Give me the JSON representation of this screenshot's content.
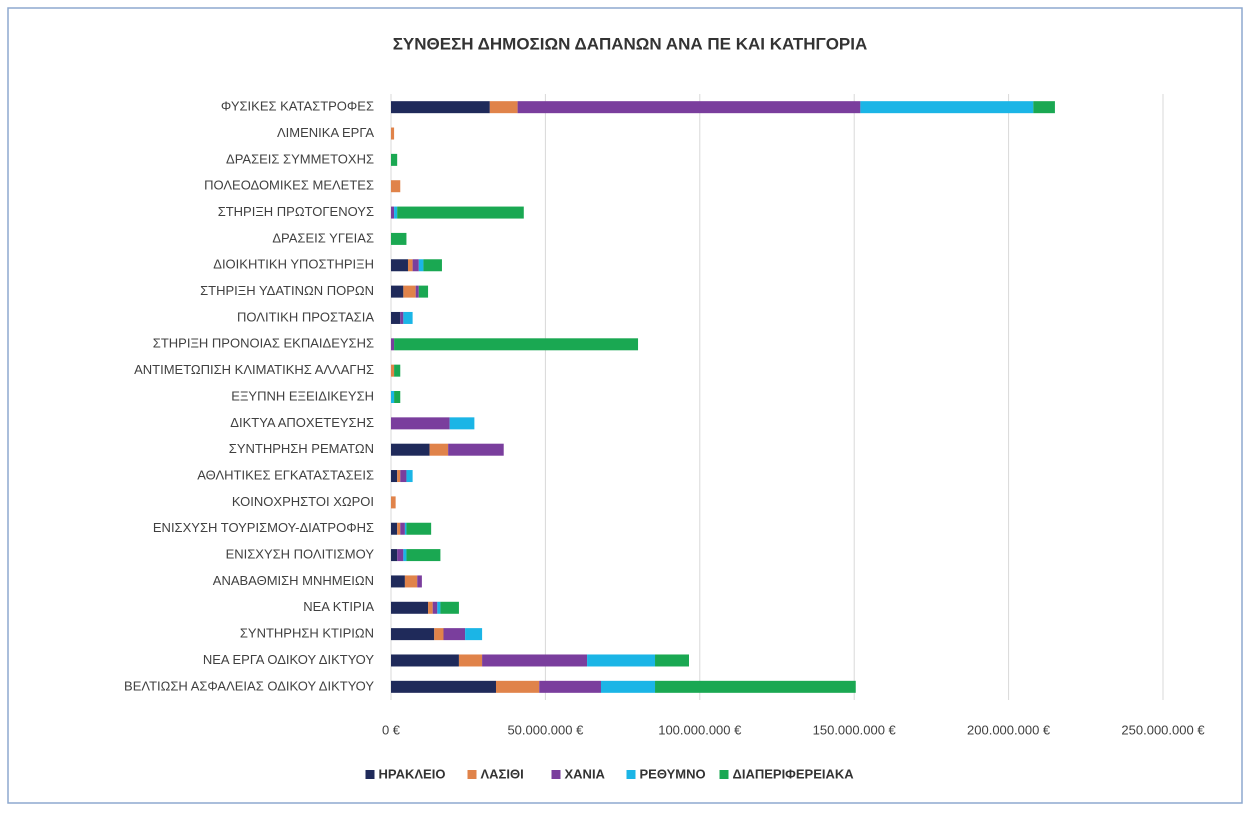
{
  "chart_data": {
    "type": "stacked-barh",
    "title": "ΣΥΝΘΕΣΗ ΔΗΜΟΣΙΩΝ ΔΑΠΑΝΩΝ ΑΝΑ ΠΕ ΚΑΙ ΚΑΤΗΓΟΡΙΑ",
    "categories": [
      "ΦΥΣΙΚΕΣ ΚΑΤΑΣΤΡΟΦΕΣ",
      "ΛΙΜΕΝΙΚΑ ΕΡΓΑ",
      "ΔΡΑΣΕΙΣ ΣΥΜΜΕΤΟΧΗΣ",
      "ΠΟΛΕΟΔΟΜΙΚΕΣ ΜΕΛΕΤΕΣ",
      "ΣΤΗΡΙΞΗ ΠΡΩΤΟΓΕΝΟΥΣ",
      "ΔΡΑΣΕΙΣ ΥΓΕΙΑΣ",
      "ΔΙΟΙΚΗΤΙΚΗ ΥΠΟΣΤΗΡΙΞΗ",
      "ΣΤΗΡΙΞΗ ΥΔΑΤΙΝΩΝ ΠΟΡΩΝ",
      "ΠΟΛΙΤΙΚΗ ΠΡΟΣΤΑΣΙΑ",
      "ΣΤΗΡΙΞΗ ΠΡΟΝΟΙΑΣ ΕΚΠΑΙΔΕΥΣΗΣ",
      "ΑΝΤΙΜΕΤΩΠΙΣΗ ΚΛΙΜΑΤΙΚΗΣ ΑΛΛΑΓΗΣ",
      "ΕΞΥΠΝΗ ΕΞΕΙΔΙΚΕΥΣΗ",
      "ΔΙΚΤΥΑ ΑΠΟΧΕΤΕΥΣΗΣ",
      "ΣΥΝΤΗΡΗΣΗ ΡΕΜΑΤΩΝ",
      "ΑΘΛΗΤΙΚΕΣ ΕΓΚΑΤΑΣΤΑΣΕΙΣ",
      "ΚΟΙΝΟΧΡΗΣΤΟΙ ΧΩΡΟΙ",
      "ΕΝΙΣΧΥΣΗ ΤΟΥΡΙΣΜΟΥ-ΔΙΑΤΡΟΦΗΣ",
      "ΕΝΙΣΧΥΣΗ ΠΟΛΙΤΙΣΜΟΥ",
      "ΑΝΑΒΑΘΜΙΣΗ ΜΝΗΜΕΙΩΝ",
      "ΝΕΑ ΚΤΙΡΙΑ",
      "ΣΥΝΤΗΡΗΣΗ ΚΤΙΡΙΩΝ",
      "ΝΕΑ ΕΡΓΑ ΟΔΙΚΟΥ ΔΙΚΤΥΟΥ",
      "ΒΕΛΤΙΩΣΗ ΑΣΦΑΛΕΙΑΣ ΟΔΙΚΟΥ ΔΙΚΤΥΟΥ"
    ],
    "series": [
      {
        "name": "ΗΡΑΚΛΕΙΟ",
        "color": "#1f2a5a",
        "values": [
          32000000,
          0,
          0,
          0,
          0,
          0,
          5500000,
          4000000,
          3000000,
          0,
          0,
          0,
          0,
          12500000,
          2000000,
          0,
          2000000,
          2000000,
          4500000,
          12000000,
          14000000,
          22000000,
          34000000
        ]
      },
      {
        "name": "ΛΑΣΙΘΙ",
        "color": "#e0834a",
        "values": [
          9000000,
          1000000,
          0,
          3000000,
          0,
          0,
          1500000,
          4000000,
          0,
          0,
          1000000,
          0,
          0,
          6000000,
          1000000,
          1500000,
          1000000,
          0,
          4000000,
          1500000,
          3000000,
          7500000,
          14000000
        ]
      },
      {
        "name": "ΧΑΝΙΑ",
        "color": "#7a3e9d",
        "values": [
          111000000,
          0,
          0,
          0,
          1000000,
          0,
          2000000,
          1000000,
          1000000,
          1000000,
          0,
          0,
          19000000,
          18000000,
          2000000,
          0,
          1500000,
          2000000,
          1500000,
          1500000,
          7000000,
          34000000,
          20000000
        ]
      },
      {
        "name": "ΡΕΘΥΜΝΟ",
        "color": "#1bb5e6",
        "values": [
          56000000,
          0,
          0,
          0,
          1000000,
          0,
          1500000,
          0,
          3000000,
          0,
          0,
          1000000,
          8000000,
          0,
          2000000,
          0,
          500000,
          1000000,
          0,
          1000000,
          5500000,
          22000000,
          17500000
        ]
      },
      {
        "name": "ΔΙΑΠΕΡΙΦΕΡΕΙΑΚΑ",
        "color": "#1aa852",
        "values": [
          7000000,
          0,
          2000000,
          0,
          41000000,
          5000000,
          6000000,
          3000000,
          0,
          79000000,
          2000000,
          2000000,
          0,
          0,
          0,
          0,
          8000000,
          11000000,
          0,
          6000000,
          0,
          11000000,
          65000000
        ]
      }
    ],
    "xlim": [
      0,
      250000000
    ],
    "xticks": [
      {
        "value": 0,
        "label": "0 €"
      },
      {
        "value": 50000000,
        "label": "50.000.000 €"
      },
      {
        "value": 100000000,
        "label": "100.000.000 €"
      },
      {
        "value": 150000000,
        "label": "150.000.000 €"
      },
      {
        "value": 200000000,
        "label": "200.000.000 €"
      },
      {
        "value": 250000000,
        "label": "250.000.000 €"
      }
    ],
    "grid": true,
    "legend": "bottom"
  }
}
